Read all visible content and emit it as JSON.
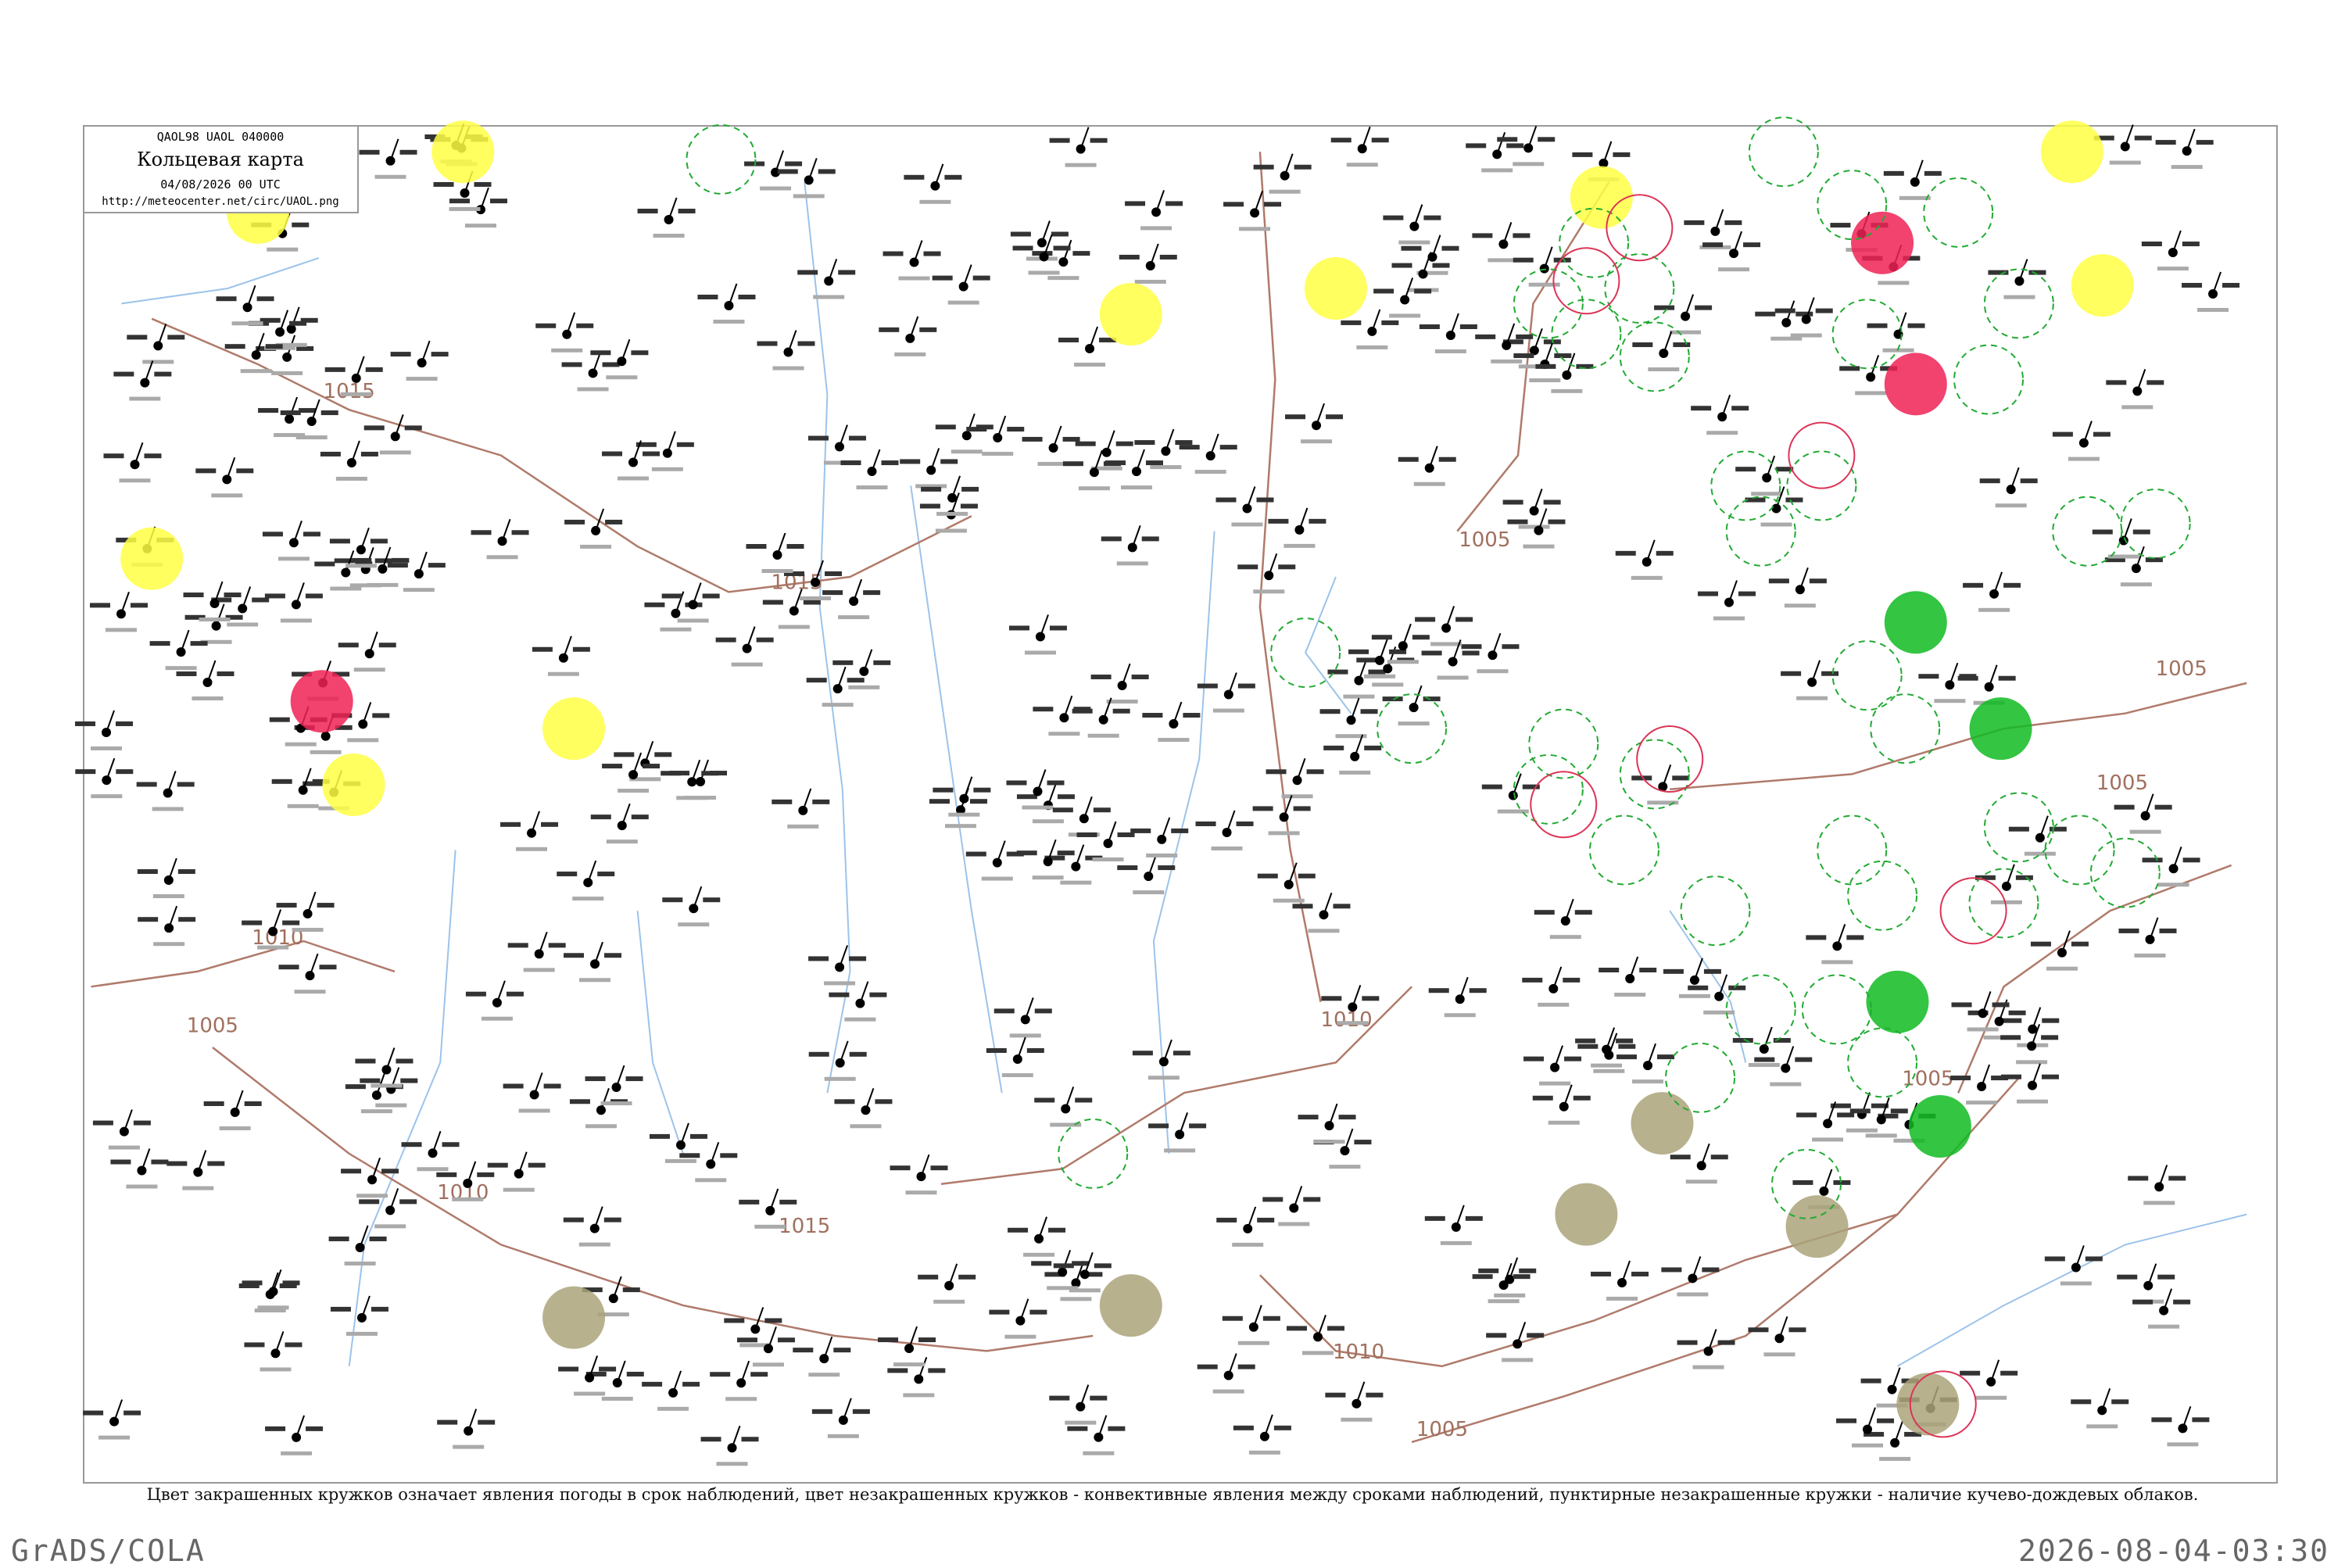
{
  "header": {
    "codes": "QAOL98  UAOL  040000",
    "title": "Кольцевая карта",
    "datetime": "04/08/2026 00 UTC",
    "url": "http://meteocenter.net/circ/UAOL.png"
  },
  "isobars": [
    "1015",
    "1015",
    "1015",
    "1010",
    "1010",
    "1010",
    "1010",
    "1005",
    "1005",
    "1005",
    "1005",
    "1005",
    "1005"
  ],
  "caption": "Цвет закрашенных кружков означает явления погоды в срок наблюдений, цвет незакрашенных кружков - конвективные явления между сроками наблюдений, пунктирные незакрашенные кружки - наличие кучево-дождевых облаков.",
  "footer": {
    "left": "GrADS/COLA",
    "right": "2026-08-04-03:30"
  }
}
